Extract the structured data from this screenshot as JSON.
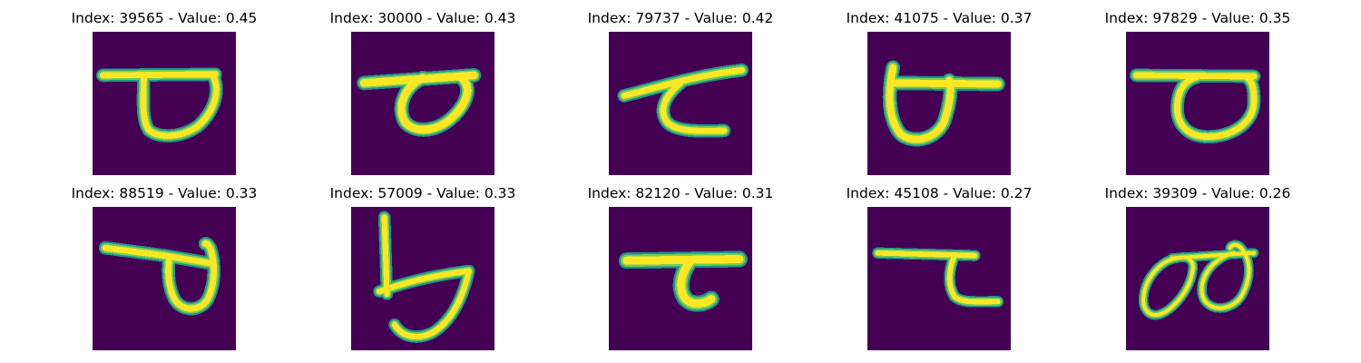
{
  "colors": {
    "background": "#ffffff",
    "image_background": "#440154",
    "stroke_core": "#fde725",
    "stroke_mid": "#6ece58",
    "stroke_edge": "#21918c"
  },
  "panels": [
    {
      "title": "Index: 39565 - Value: 0.45",
      "glyph": "loop-with-left-bar"
    },
    {
      "title": "Index: 30000 - Value: 0.43",
      "glyph": "slanted-loop-with-bar"
    },
    {
      "title": "Index: 79737 - Value: 0.42",
      "glyph": "hook-with-slanted-bar"
    },
    {
      "title": "Index: 41075 - Value: 0.37",
      "glyph": "loop-with-right-bar"
    },
    {
      "title": "Index: 97829 - Value: 0.35",
      "glyph": "loop-with-left-bar"
    },
    {
      "title": "Index: 88519 - Value: 0.33",
      "glyph": "loop-with-left-bar-drop"
    },
    {
      "title": "Index: 57009 - Value: 0.33",
      "glyph": "vertical-stem-with-bowl"
    },
    {
      "title": "Index: 82120 - Value: 0.31",
      "glyph": "hook-with-bar"
    },
    {
      "title": "Index: 45108 - Value: 0.27",
      "glyph": "thin-hook-with-bar"
    },
    {
      "title": "Index: 39309 - Value: 0.26",
      "glyph": "double-loop"
    }
  ]
}
